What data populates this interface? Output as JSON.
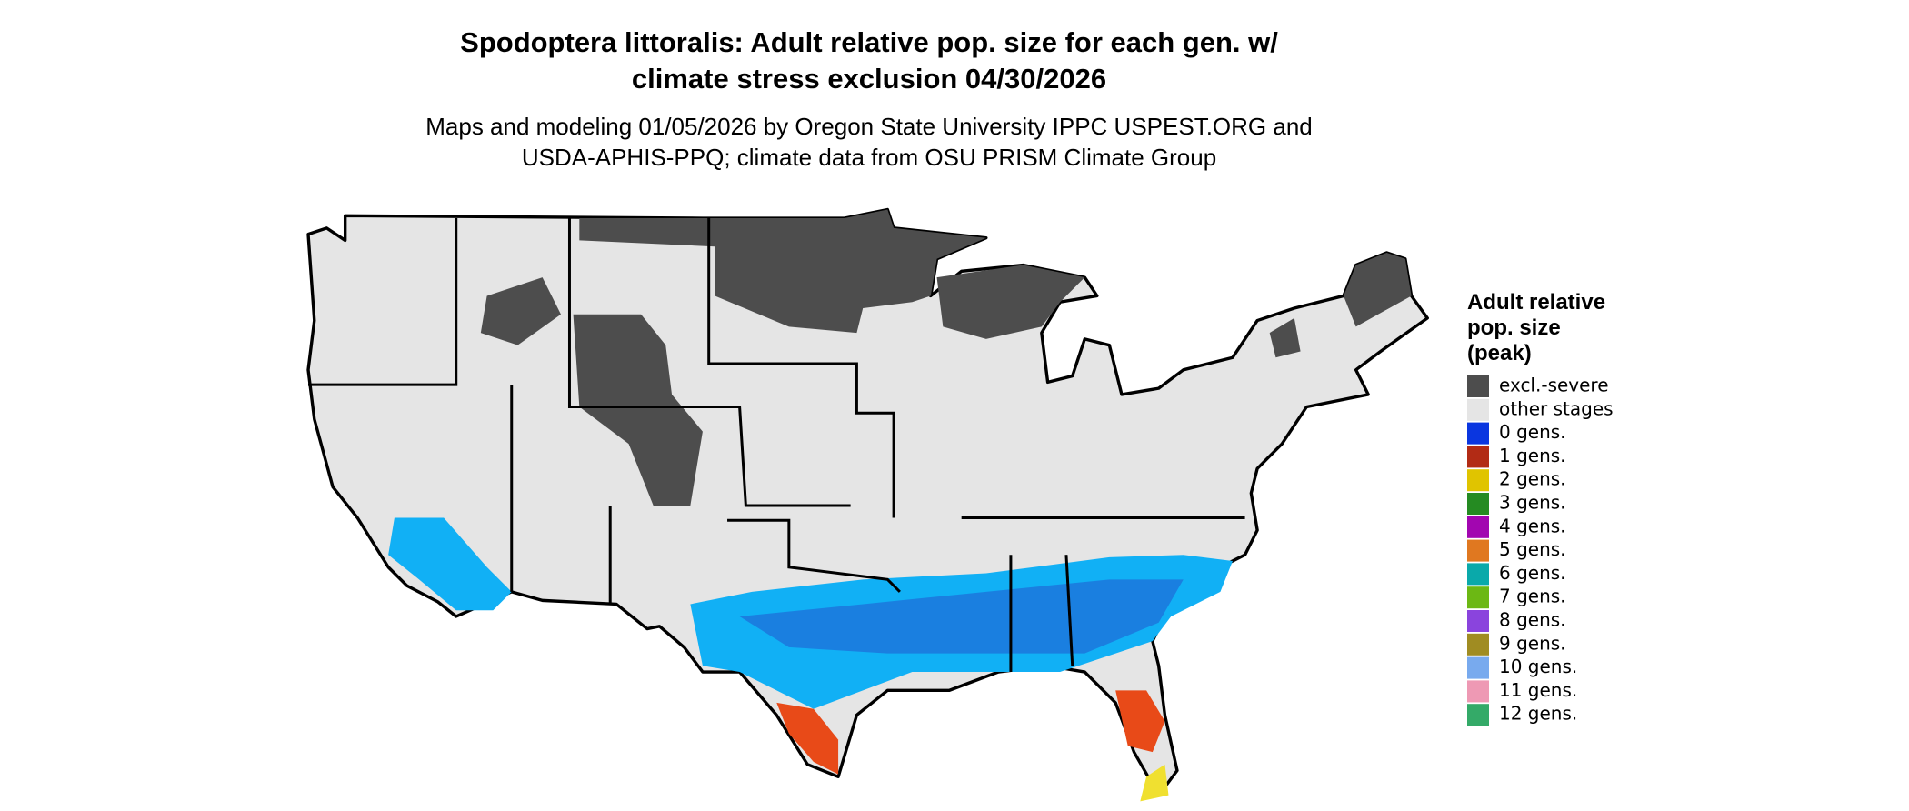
{
  "title": [
    "Spodoptera littoralis: Adult relative pop. size for each gen. w/",
    "climate stress exclusion 04/30/2026"
  ],
  "subtitle": [
    "Maps and modeling 01/05/2026 by Oregon State University IPPC USPEST.ORG and",
    "USDA-APHIS-PPQ; climate data from OSU PRISM Climate Group"
  ],
  "legend": {
    "title": [
      "Adult relative",
      "pop. size",
      "(peak)"
    ],
    "items": [
      {
        "label": "excl.-severe",
        "color": "#4d4d4d"
      },
      {
        "label": "other stages",
        "color": "#e5e5e5"
      },
      {
        "label": "0 gens.",
        "color": "#0a36e0"
      },
      {
        "label": "1 gens.",
        "color": "#b22b15"
      },
      {
        "label": "2 gens.",
        "color": "#e0c400"
      },
      {
        "label": "3 gens.",
        "color": "#258b22"
      },
      {
        "label": "4 gens.",
        "color": "#a206b0"
      },
      {
        "label": "5 gens.",
        "color": "#e07820"
      },
      {
        "label": "6 gens.",
        "color": "#0aa9aa"
      },
      {
        "label": "7 gens.",
        "color": "#6cb814"
      },
      {
        "label": "8 gens.",
        "color": "#8a44dd"
      },
      {
        "label": "9 gens.",
        "color": "#a08c22"
      },
      {
        "label": "10 gens.",
        "color": "#78aaee"
      },
      {
        "label": "11 gens.",
        "color": "#ee99b4"
      },
      {
        "label": "12 gens.",
        "color": "#34aa68"
      }
    ]
  }
}
